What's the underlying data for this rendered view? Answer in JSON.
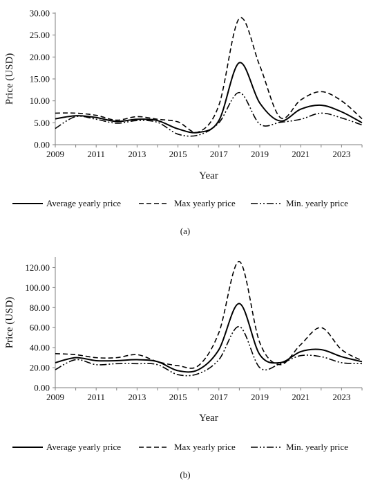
{
  "chart_data": [
    {
      "type": "line",
      "panel_label": "(a)",
      "xlabel": "Year",
      "ylabel": "Price (USD)",
      "xlim": [
        2009,
        2024
      ],
      "ylim": [
        0,
        30
      ],
      "x_ticks": [
        "2009",
        "2011",
        "2013",
        "2015",
        "2017",
        "2019",
        "2021",
        "2023"
      ],
      "y_ticks": [
        "0.00",
        "5.00",
        "10.00",
        "15.00",
        "20.00",
        "25.00",
        "30.00"
      ],
      "x": [
        2009,
        2010,
        2011,
        2012,
        2013,
        2014,
        2015,
        2016,
        2017,
        2018,
        2019,
        2020,
        2021,
        2022,
        2023,
        2024
      ],
      "series": [
        {
          "name": "Average yearly price",
          "style": "solid",
          "values": [
            5.9,
            6.6,
            6.2,
            5.3,
            5.8,
            5.5,
            3.6,
            2.8,
            5.5,
            18.7,
            9.5,
            5.4,
            8.1,
            9.0,
            7.5,
            5.0
          ]
        },
        {
          "name": "Max yearly price",
          "style": "dashed",
          "values": [
            7.2,
            7.2,
            6.7,
            5.6,
            6.4,
            5.8,
            5.2,
            2.9,
            9.0,
            28.8,
            18.0,
            6.2,
            10.2,
            12.1,
            10.0,
            5.9
          ]
        },
        {
          "name": "Min. yearly price",
          "style": "dashdotdot",
          "values": [
            3.7,
            6.4,
            5.8,
            4.9,
            5.5,
            5.1,
            2.4,
            2.2,
            5.0,
            11.9,
            4.7,
            5.1,
            5.8,
            7.2,
            6.1,
            4.5
          ]
        }
      ],
      "legend_position": "bottom"
    },
    {
      "type": "line",
      "panel_label": "(b)",
      "xlabel": "Year",
      "ylabel": "Price (USD)",
      "xlim": [
        2009,
        2024
      ],
      "ylim": [
        0,
        130
      ],
      "x_ticks": [
        "2009",
        "2011",
        "2013",
        "2015",
        "2017",
        "2019",
        "2021",
        "2023"
      ],
      "y_ticks": [
        "0.00",
        "20.00",
        "40.00",
        "60.00",
        "80.00",
        "100.00",
        "120.00"
      ],
      "x": [
        2009,
        2010,
        2011,
        2012,
        2013,
        2014,
        2015,
        2016,
        2017,
        2018,
        2019,
        2020,
        2021,
        2022,
        2023,
        2024
      ],
      "series": [
        {
          "name": "Average yearly price",
          "style": "solid",
          "values": [
            25,
            30,
            27,
            27,
            28,
            26,
            17,
            18,
            38,
            84,
            33,
            25,
            36,
            38,
            31,
            26
          ]
        },
        {
          "name": "Max yearly price",
          "style": "dashed",
          "values": [
            34,
            33,
            30,
            30,
            33,
            26,
            22,
            22,
            55,
            126,
            45,
            23,
            43,
            60,
            38,
            27
          ]
        },
        {
          "name": "Min. yearly price",
          "style": "dashdotdot",
          "values": [
            18,
            28,
            23,
            24,
            24,
            23,
            13,
            14,
            28,
            61,
            20,
            24,
            32,
            31,
            25,
            24
          ]
        }
      ],
      "legend_position": "bottom"
    }
  ]
}
